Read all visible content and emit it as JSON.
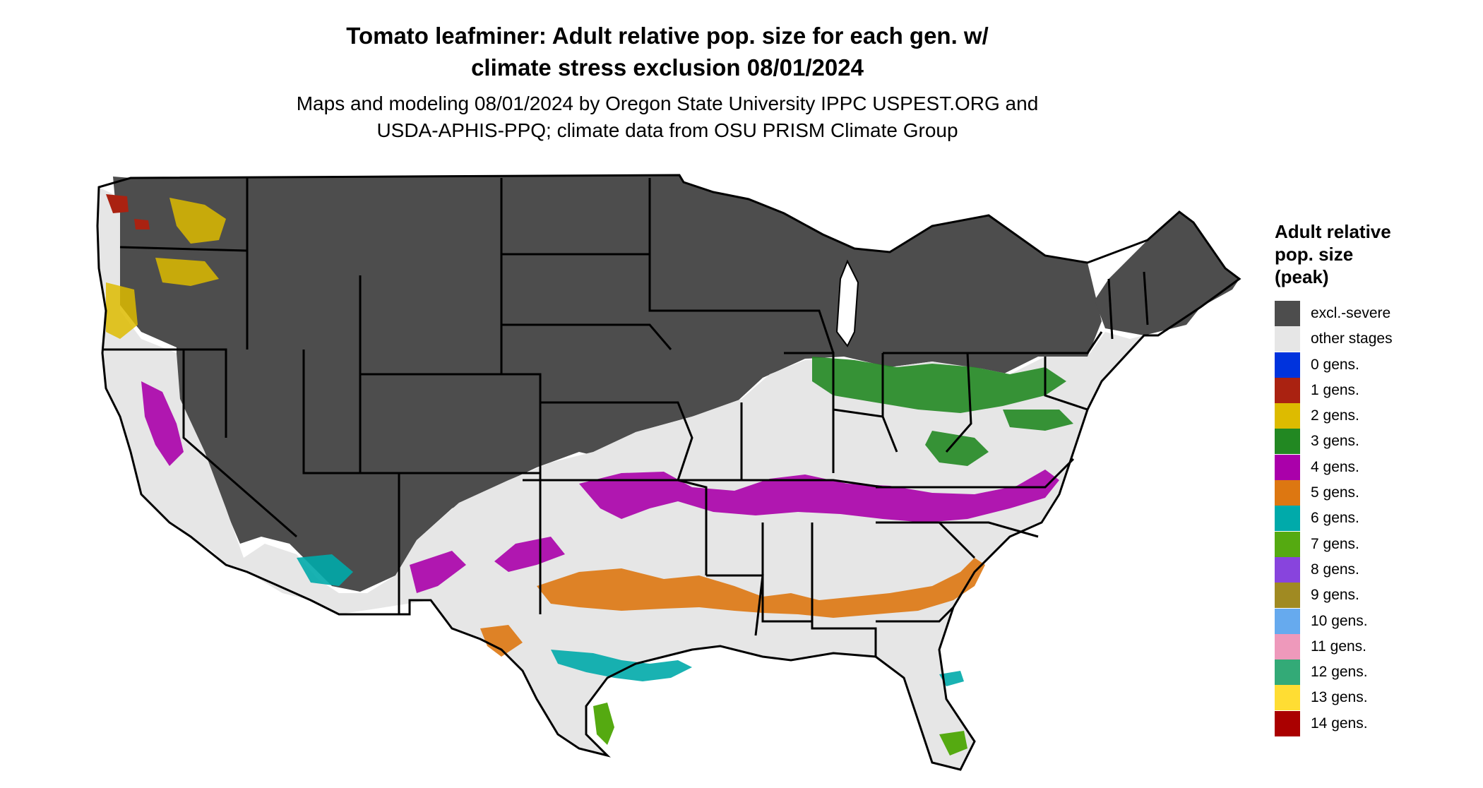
{
  "title_line1": "Tomato leafminer: Adult relative pop. size for each gen. w/",
  "title_line2": "climate stress exclusion 08/01/2024",
  "subtitle_line1": "Maps and modeling 08/01/2024 by Oregon State University IPPC USPEST.ORG and",
  "subtitle_line2": "USDA-APHIS-PPQ; climate data from OSU PRISM Climate Group",
  "legend": {
    "title_line1": "Adult relative",
    "title_line2": "pop. size",
    "title_line3": "(peak)",
    "items": [
      {
        "label": "excl.-severe",
        "color": "#4d4d4d"
      },
      {
        "label": "other stages",
        "color": "#e6e6e6"
      },
      {
        "label": "0 gens.",
        "color": "#0033dd"
      },
      {
        "label": "1 gens.",
        "color": "#aa2211"
      },
      {
        "label": "2 gens.",
        "color": "#ddbb00"
      },
      {
        "label": "3 gens.",
        "color": "#228822"
      },
      {
        "label": "4 gens.",
        "color": "#aa00aa"
      },
      {
        "label": "5 gens.",
        "color": "#dd7711"
      },
      {
        "label": "6 gens.",
        "color": "#00aaaa"
      },
      {
        "label": "7 gens.",
        "color": "#55aa11"
      },
      {
        "label": "8 gens.",
        "color": "#8844dd"
      },
      {
        "label": "9 gens.",
        "color": "#a08a22"
      },
      {
        "label": "10 gens.",
        "color": "#66aaee"
      },
      {
        "label": "11 gens.",
        "color": "#ee99bb"
      },
      {
        "label": "12 gens.",
        "color": "#33aa77"
      },
      {
        "label": "13 gens.",
        "color": "#ffdd33"
      },
      {
        "label": "14 gens.",
        "color": "#aa0000"
      }
    ]
  }
}
